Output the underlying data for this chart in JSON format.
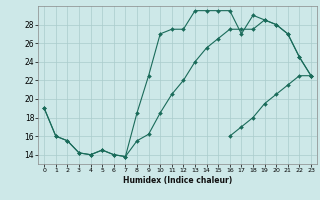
{
  "xlabel": "Humidex (Indice chaleur)",
  "bg_color": "#cde8e8",
  "grid_color": "#aacccc",
  "line_color": "#1a6b5a",
  "xlim": [
    -0.5,
    23.5
  ],
  "ylim": [
    13,
    30
  ],
  "xticks": [
    0,
    1,
    2,
    3,
    4,
    5,
    6,
    7,
    8,
    9,
    10,
    11,
    12,
    13,
    14,
    15,
    16,
    17,
    18,
    19,
    20,
    21,
    22,
    23
  ],
  "yticks": [
    14,
    16,
    18,
    20,
    22,
    24,
    26,
    28
  ],
  "series": [
    {
      "x": [
        0,
        1,
        2,
        3,
        4,
        5,
        6,
        7,
        8,
        9,
        10,
        11,
        12,
        13,
        14,
        15,
        16,
        17,
        18,
        19,
        20,
        21,
        22,
        23
      ],
      "y": [
        19,
        16,
        15.5,
        14.2,
        14,
        14.5,
        14,
        13.8,
        18.5,
        22.5,
        27,
        27.5,
        27.5,
        29.5,
        29.5,
        29.5,
        29.5,
        27,
        29,
        28.5,
        28,
        27,
        24.5,
        22.5
      ]
    },
    {
      "x": [
        0,
        1,
        2,
        3,
        4,
        5,
        6,
        7,
        8,
        9,
        10,
        11,
        12,
        13,
        14,
        15,
        16,
        17,
        18,
        19,
        20,
        21,
        22,
        23
      ],
      "y": [
        19,
        16,
        15.5,
        14.2,
        14,
        14.5,
        14,
        13.8,
        15.5,
        16.2,
        18.5,
        20.5,
        22,
        24,
        25.5,
        26.5,
        27.5,
        27.5,
        27.5,
        28.5,
        28,
        27,
        24.5,
        22.5
      ]
    },
    {
      "x": [
        16,
        17,
        18,
        19,
        20,
        21,
        22,
        23
      ],
      "y": [
        16.0,
        17.0,
        18.0,
        19.5,
        20.5,
        21.5,
        22.5,
        22.5
      ]
    }
  ]
}
